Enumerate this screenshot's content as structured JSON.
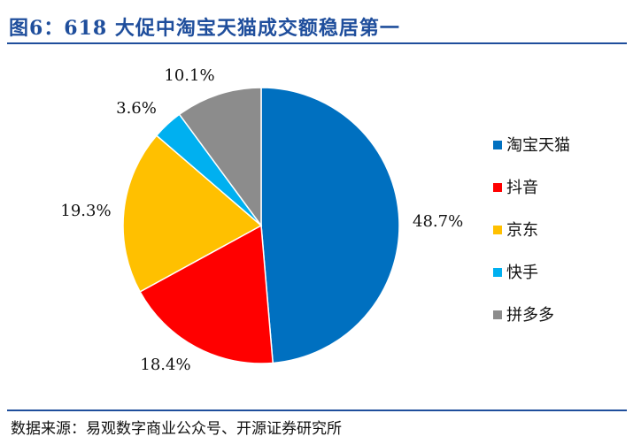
{
  "header": {
    "title": "图6：618 大促中淘宝天猫成交额稳居第一"
  },
  "footer": {
    "source": "数据来源：易观数字商业公众号、开源证券研究所"
  },
  "chart_data": {
    "type": "pie",
    "title": "图6：618 大促中淘宝天猫成交额稳居第一",
    "slices": [
      {
        "name": "淘宝天猫",
        "value": 48.7,
        "label": "48.7%",
        "color": "#0070c0"
      },
      {
        "name": "抖音",
        "value": 18.4,
        "label": "18.4%",
        "color": "#ff0000"
      },
      {
        "name": "京东",
        "value": 19.3,
        "label": "19.3%",
        "color": "#ffc000"
      },
      {
        "name": "快手",
        "value": 3.6,
        "label": "3.6%",
        "color": "#00b0f0"
      },
      {
        "name": "拼多多",
        "value": 10.1,
        "label": "10.1%",
        "color": "#8c8c8c"
      }
    ],
    "legend_position": "right"
  }
}
